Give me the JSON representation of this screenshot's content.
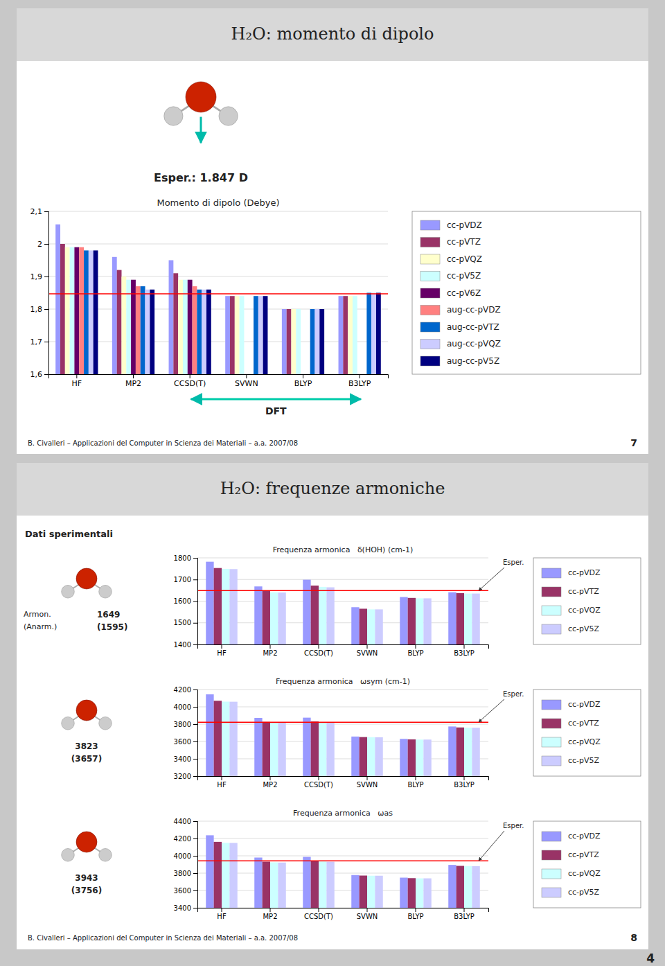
{
  "chart_data": [
    {
      "type": "bar",
      "title": "Momento di dipolo (Debye)",
      "categories": [
        "HF",
        "MP2",
        "CCSD(T)",
        "SVWN",
        "BLYP",
        "B3LYP"
      ],
      "series": [
        {
          "name": "cc-pVDZ",
          "color": "#9999FF",
          "values": [
            2.06,
            1.96,
            1.95,
            1.84,
            1.8,
            1.84
          ]
        },
        {
          "name": "cc-pVTZ",
          "color": "#993366",
          "values": [
            2.0,
            1.92,
            1.91,
            1.84,
            1.8,
            1.84
          ]
        },
        {
          "name": "cc-pVQZ",
          "color": "#FFFFCC",
          "values": [
            1.99,
            1.9,
            1.89,
            1.84,
            1.8,
            1.84
          ]
        },
        {
          "name": "cc-pV5Z",
          "color": "#CCFFFF",
          "values": [
            1.99,
            1.89,
            1.89,
            1.84,
            1.8,
            1.84
          ]
        },
        {
          "name": "cc-pV6Z",
          "color": "#660066",
          "values": [
            1.99,
            1.89,
            1.89,
            null,
            null,
            null
          ]
        },
        {
          "name": "aug-cc-pVDZ",
          "color": "#FF8080",
          "values": [
            1.99,
            1.87,
            1.87,
            null,
            null,
            null
          ]
        },
        {
          "name": "aug-cc-pVTZ",
          "color": "#0066CC",
          "values": [
            1.98,
            1.87,
            1.86,
            1.84,
            1.8,
            1.85
          ]
        },
        {
          "name": "aug-cc-pVQZ",
          "color": "#CCCCFF",
          "values": [
            1.98,
            1.86,
            1.86,
            1.84,
            1.8,
            1.85
          ]
        },
        {
          "name": "aug-cc-pV5Z",
          "color": "#000080",
          "values": [
            1.98,
            1.86,
            1.86,
            1.84,
            1.8,
            1.85
          ]
        }
      ],
      "ylim": [
        1.6,
        2.1
      ],
      "yticks": [
        {
          "value": 1.6,
          "label": "1,6"
        },
        {
          "value": 1.7,
          "label": "1,7"
        },
        {
          "value": 1.8,
          "label": "1,8"
        },
        {
          "value": 1.9,
          "label": "1,9"
        },
        2,
        {
          "value": 2.1,
          "label": "2,1"
        }
      ],
      "grid": true,
      "legend": "right",
      "reference_line": 1.847,
      "annotations": [
        {
          "text": "H₂O: momento di dipolo"
        },
        {
          "text": "Esper.: 1.847 D"
        },
        {
          "text": "DFT"
        },
        {
          "text": "B. Civalleri – Applicazioni del Computer in Scienza dei Materiali – a.a. 2007/08"
        },
        {
          "text": "7"
        }
      ]
    },
    {
      "type": "bar",
      "title": "Frequenza armonica   δ(HOH) (cm-1)",
      "categories": [
        "HF",
        "MP2",
        "CCSD(T)",
        "SVWN",
        "BLYP",
        "B3LYP"
      ],
      "series": [
        {
          "name": "cc-pVDZ",
          "color": "#9999FF",
          "values": [
            1782,
            1668,
            1699,
            1572,
            1619,
            1641
          ]
        },
        {
          "name": "cc-pVTZ",
          "color": "#993366",
          "values": [
            1753,
            1648,
            1672,
            1565,
            1615,
            1637
          ]
        },
        {
          "name": "cc-pVQZ",
          "color": "#CCFFFF",
          "values": [
            1749,
            1641,
            1666,
            1562,
            1613,
            1635
          ]
        },
        {
          "name": "cc-pV5Z",
          "color": "#CCCCFF",
          "values": [
            1748,
            1640,
            1664,
            1562,
            1613,
            1635
          ]
        }
      ],
      "ylim": [
        1400,
        1800
      ],
      "yticks": [
        1400,
        1500,
        1600,
        1700,
        1800
      ],
      "grid": true,
      "legend": "right",
      "reference_line": 1649,
      "annotations": [
        {
          "text": "H₂O: frequenze armoniche"
        },
        {
          "text": "Dati sperimentali"
        },
        {
          "text": "Armon."
        },
        {
          "text": "(Anarm.)"
        },
        {
          "text": "1649"
        },
        {
          "text": "(1595)"
        },
        {
          "text": "Esper."
        }
      ]
    },
    {
      "type": "bar",
      "title": "Frequenza armonica   ωsym (cm-1)",
      "categories": [
        "HF",
        "MP2",
        "CCSD(T)",
        "SVWN",
        "BLYP",
        "B3LYP"
      ],
      "series": [
        {
          "name": "cc-pVDZ",
          "color": "#9999FF",
          "values": [
            4144,
            3872,
            3875,
            3657,
            3630,
            3773
          ]
        },
        {
          "name": "cc-pVTZ",
          "color": "#993366",
          "values": [
            4070,
            3826,
            3831,
            3651,
            3624,
            3762
          ]
        },
        {
          "name": "cc-pVQZ",
          "color": "#CCFFFF",
          "values": [
            4060,
            3819,
            3823,
            3650,
            3622,
            3760
          ]
        },
        {
          "name": "cc-pV5Z",
          "color": "#CCCCFF",
          "values": [
            4059,
            3817,
            3820,
            3649,
            3622,
            3759
          ]
        }
      ],
      "ylim": [
        3200,
        4200
      ],
      "yticks": [
        3200,
        3400,
        3600,
        3800,
        4000,
        4200
      ],
      "grid": true,
      "legend": "right",
      "reference_line": 3823,
      "annotations": [
        {
          "text": "3823"
        },
        {
          "text": "(3657)"
        },
        {
          "text": "Esper."
        }
      ]
    },
    {
      "type": "bar",
      "title": "Frequenza armonica   ωas",
      "categories": [
        "HF",
        "MP2",
        "CCSD(T)",
        "SVWN",
        "BLYP",
        "B3LYP"
      ],
      "series": [
        {
          "name": "cc-pVDZ",
          "color": "#9999FF",
          "values": [
            4237,
            3980,
            3988,
            3778,
            3748,
            3895
          ]
        },
        {
          "name": "cc-pVTZ",
          "color": "#993366",
          "values": [
            4161,
            3932,
            3942,
            3772,
            3742,
            3884
          ]
        },
        {
          "name": "cc-pVQZ",
          "color": "#CCFFFF",
          "values": [
            4150,
            3924,
            3934,
            3770,
            3740,
            3882
          ]
        },
        {
          "name": "cc-pV5Z",
          "color": "#CCCCFF",
          "values": [
            4149,
            3922,
            3931,
            3770,
            3740,
            3881
          ]
        }
      ],
      "ylim": [
        3400,
        4400
      ],
      "yticks": [
        3400,
        3600,
        3800,
        4000,
        4200,
        4400
      ],
      "grid": true,
      "legend": "right",
      "reference_line": 3943,
      "annotations": [
        {
          "text": "3943"
        },
        {
          "text": "(3756)"
        },
        {
          "text": "Esper."
        },
        {
          "text": "B. Civalleri – Applicazioni del Computer in Scienza dei Materiali – a.a. 2007/08"
        },
        {
          "text": "8"
        },
        {
          "text": "4"
        }
      ]
    }
  ]
}
